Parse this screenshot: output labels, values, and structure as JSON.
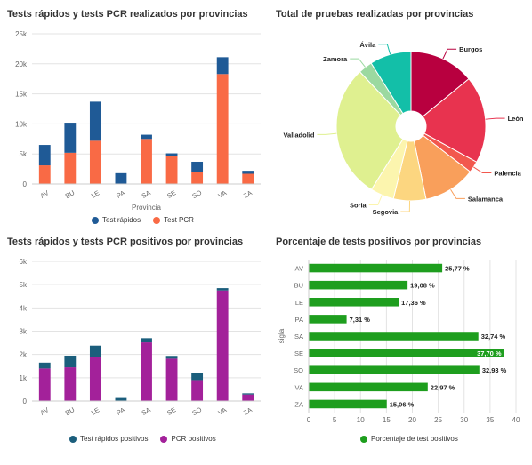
{
  "chart_data": [
    {
      "id": "c1",
      "type": "bar",
      "stacked": true,
      "title": "Tests rápidos y tests PCR realizados por provincias",
      "xlabel": "Provincia",
      "ylabel": "",
      "ylim": [
        0,
        25000
      ],
      "yticks": [
        0,
        5000,
        10000,
        15000,
        20000,
        25000
      ],
      "ytick_labels": [
        "0",
        "5k",
        "10k",
        "15k",
        "20k",
        "25k"
      ],
      "categories": [
        "AV",
        "BU",
        "LE",
        "PA",
        "SA",
        "SE",
        "SO",
        "VA",
        "ZA"
      ],
      "series": [
        {
          "name": "Test PCR",
          "color": "#f96a45",
          "values": [
            3100,
            5200,
            7200,
            0,
            7500,
            4600,
            2000,
            18300,
            1700
          ]
        },
        {
          "name": "Test rápidos",
          "color": "#1f5a96",
          "values": [
            3400,
            5000,
            6500,
            1800,
            700,
            500,
            1700,
            2800,
            500
          ]
        }
      ],
      "legend": [
        "Test rápidos",
        "Test PCR"
      ],
      "legend_position": "bottom",
      "grid": true
    },
    {
      "id": "c2",
      "type": "pie",
      "title": "Total de pruebas realizadas por provincias",
      "donut": true,
      "slices": [
        {
          "label": "Burgos",
          "value": 10200,
          "color": "#b8003f"
        },
        {
          "label": "León",
          "value": 13700,
          "color": "#e8334f"
        },
        {
          "label": "Palencia",
          "value": 1800,
          "color": "#f2584e"
        },
        {
          "label": "Salamanca",
          "value": 8200,
          "color": "#f99f5b"
        },
        {
          "label": "Segovia",
          "value": 5100,
          "color": "#fcd680"
        },
        {
          "label": "Soria",
          "value": 3700,
          "color": "#fcf5ae"
        },
        {
          "label": "Valladolid",
          "value": 21100,
          "color": "#dff090"
        },
        {
          "label": "Zamora",
          "value": 2200,
          "color": "#9bd9a0"
        },
        {
          "label": "Ávila",
          "value": 6500,
          "color": "#13bfa8"
        }
      ]
    },
    {
      "id": "c3",
      "type": "bar",
      "stacked": true,
      "title": "Tests rápidos y tests PCR positivos por provincias",
      "xlabel": "",
      "ylabel": "",
      "ylim": [
        0,
        6000
      ],
      "yticks": [
        0,
        1000,
        2000,
        3000,
        4000,
        5000,
        6000
      ],
      "ytick_labels": [
        "0",
        "1k",
        "2k",
        "3k",
        "4k",
        "5k",
        "6k"
      ],
      "categories": [
        "AV",
        "BU",
        "LE",
        "PA",
        "SA",
        "SE",
        "SO",
        "VA",
        "ZA"
      ],
      "series": [
        {
          "name": "PCR positivos",
          "color": "#a3219a",
          "values": [
            1400,
            1450,
            1900,
            0,
            2520,
            1820,
            900,
            4750,
            280
          ]
        },
        {
          "name": "Test rápidos positivos",
          "color": "#1b5e7c",
          "values": [
            250,
            500,
            480,
            130,
            180,
            120,
            320,
            100,
            50
          ]
        }
      ],
      "legend": [
        "Test rápidos positivos",
        "PCR positivos"
      ],
      "legend_position": "bottom",
      "grid": true
    },
    {
      "id": "c4",
      "type": "bar",
      "orientation": "horizontal",
      "title": "Porcentaje de tests positivos por provincias",
      "ylabel": "sigla",
      "xlabel": "",
      "xlim": [
        0,
        40
      ],
      "xticks": [
        0,
        5,
        10,
        15,
        20,
        25,
        30,
        35,
        40
      ],
      "categories": [
        "AV",
        "BU",
        "LE",
        "PA",
        "SA",
        "SE",
        "SO",
        "VA",
        "ZA"
      ],
      "series": [
        {
          "name": "Porcentaje de test positivos",
          "color": "#1e9e1e",
          "values": [
            25.77,
            19.08,
            17.36,
            7.31,
            32.74,
            37.7,
            32.93,
            22.97,
            15.06
          ],
          "labels": [
            "25,77 %",
            "19,08 %",
            "17,36 %",
            "7,31 %",
            "32,74 %",
            "37,70 %",
            "32,93 %",
            "22,97 %",
            "15,06 %"
          ]
        }
      ],
      "legend": [
        "Porcentaje de test positivos"
      ],
      "legend_position": "bottom",
      "grid": true
    }
  ]
}
